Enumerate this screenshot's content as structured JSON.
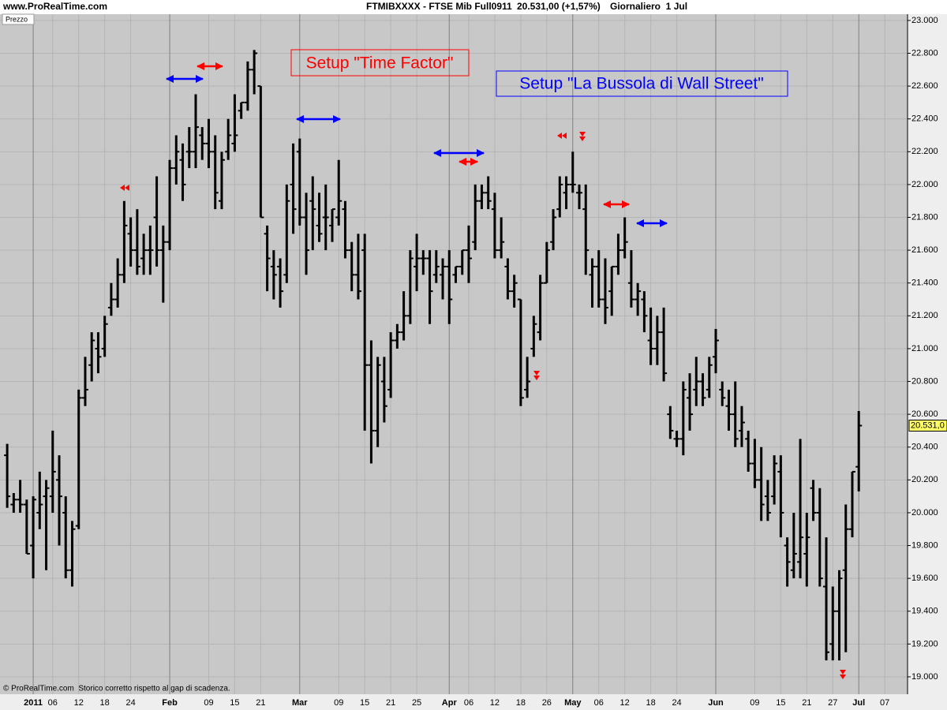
{
  "chart_data": {
    "type": "ohlc",
    "site": "www.ProRealTime.com",
    "title": "FTMIBXXXX - FTSE Mib Full0911",
    "quote": "20.531,00 (+1,57%)",
    "period": "Giornaliero  1 Jul",
    "panel_label": "Prezzo",
    "footer": "© ProRealTime.com  Storico corretto rispetto al gap di scadenza.",
    "annotations": [
      {
        "text": "Setup \"Time Factor\"",
        "color": "#ff0000"
      },
      {
        "text": "Setup \"La Bussola di Wall Street\"",
        "color": "#0000ff"
      }
    ],
    "color": "#000000",
    "grid": true,
    "categories": [
      null,
      null,
      null,
      null,
      "2011",
      null,
      null,
      "06",
      null,
      null,
      null,
      "12",
      null,
      null,
      null,
      "18",
      null,
      null,
      null,
      "24",
      null,
      null,
      null,
      null,
      null,
      "Feb",
      null,
      null,
      null,
      null,
      null,
      "09",
      null,
      null,
      null,
      "15",
      null,
      null,
      null,
      "21",
      null,
      null,
      null,
      null,
      null,
      "Mar",
      null,
      null,
      null,
      null,
      null,
      "09",
      null,
      null,
      null,
      "15",
      null,
      null,
      null,
      "21",
      null,
      null,
      null,
      "25",
      null,
      null,
      null,
      null,
      "Apr",
      null,
      null,
      "06",
      null,
      null,
      null,
      "12",
      null,
      null,
      null,
      "18",
      null,
      null,
      null,
      "26",
      null,
      null,
      null,
      "May",
      null,
      null,
      null,
      "06",
      null,
      null,
      null,
      "12",
      null,
      null,
      null,
      "18",
      null,
      null,
      null,
      "24",
      null,
      null,
      null,
      null,
      null,
      "Jun",
      null,
      null,
      null,
      null,
      null,
      "09",
      null,
      null,
      null,
      "15",
      null,
      null,
      null,
      "21",
      null,
      null,
      null,
      "27",
      null,
      null,
      null,
      "Jul",
      null,
      null,
      null,
      "07",
      null,
      null,
      null
    ],
    "open": [
      20350,
      20050,
      20080,
      20050,
      19800,
      20000,
      20100,
      20100,
      20200,
      20000,
      19650,
      19920,
      20700,
      20900,
      21000,
      21000,
      21250,
      21300,
      21450,
      21700,
      21600,
      21550,
      21600,
      21800,
      21600,
      21650,
      22100,
      22150,
      22200,
      22200,
      22300,
      22250,
      22200,
      21900,
      22200,
      22250,
      22450,
      22500,
      22700,
      22600,
      21700,
      21500,
      21500,
      21450,
      22000,
      22200,
      21800,
      21900,
      21750,
      21800,
      21750,
      21800,
      21850,
      21600,
      21450,
      21600,
      20900,
      20500,
      20800,
      20750,
      21050,
      21100,
      21200,
      21500,
      21550,
      21550,
      21450,
      21450,
      21500,
      21450,
      21500,
      21600,
      21650,
      21900,
      21950,
      21850,
      21600,
      21500,
      21350,
      21300,
      20750,
      21000,
      21100,
      21400,
      21650,
      21850,
      21950,
      22000,
      21950,
      21850,
      21450,
      21500,
      21300,
      21350,
      21500,
      21600,
      21400,
      21300,
      21300,
      21050,
      21000,
      21100,
      20600,
      20450,
      20450,
      20700,
      20750,
      20800,
      20750,
      20950,
      20750,
      20650,
      20600,
      20500,
      20450,
      20300,
      20200,
      20100,
      20100,
      20250,
      19800,
      19650,
      19700,
      19750,
      20150,
      20000,
      19550,
      19200,
      19400,
      19650,
      19900,
      20280,
      null,
      null,
      null,
      null,
      null,
      null,
      null
    ],
    "high": [
      20420,
      20120,
      20200,
      20080,
      20100,
      20250,
      20200,
      20500,
      20350,
      20100,
      19950,
      20750,
      20950,
      21100,
      21100,
      21200,
      21400,
      21550,
      21900,
      21800,
      21850,
      21700,
      21750,
      22050,
      21750,
      22150,
      22300,
      22250,
      22350,
      22550,
      22350,
      22400,
      22300,
      22200,
      22400,
      22550,
      22500,
      22750,
      22820,
      22600,
      21750,
      21600,
      21550,
      22000,
      22250,
      22280,
      21950,
      22050,
      21950,
      22000,
      21850,
      22150,
      21900,
      21650,
      21700,
      21700,
      21050,
      20950,
      20950,
      21100,
      21150,
      21350,
      21600,
      21700,
      21600,
      21600,
      21600,
      21550,
      21600,
      21500,
      21600,
      21750,
      22000,
      22000,
      22050,
      21950,
      21800,
      21550,
      21450,
      21300,
      20950,
      21200,
      21450,
      21650,
      21850,
      22050,
      22050,
      22200,
      22000,
      22000,
      21550,
      21600,
      21550,
      21500,
      21700,
      21800,
      21600,
      21400,
      21350,
      21250,
      21200,
      21250,
      20650,
      20500,
      20800,
      20850,
      20950,
      20850,
      20950,
      21120,
      20800,
      20750,
      20800,
      20650,
      20500,
      20450,
      20400,
      20200,
      20350,
      20350,
      19850,
      20000,
      20450,
      20000,
      20200,
      20150,
      19850,
      19550,
      19650,
      20050,
      20250,
      20620,
      null,
      null,
      null,
      null,
      null,
      null,
      null
    ],
    "low": [
      20030,
      20000,
      20000,
      19750,
      19600,
      19900,
      19650,
      20000,
      19800,
      19600,
      19550,
      19900,
      20650,
      20800,
      20850,
      20950,
      21200,
      21250,
      21400,
      21500,
      21450,
      21450,
      21450,
      21500,
      21280,
      21600,
      22000,
      21900,
      22100,
      22100,
      22150,
      22100,
      21850,
      21850,
      22150,
      22200,
      22400,
      22450,
      22550,
      21800,
      21350,
      21300,
      21250,
      21400,
      21700,
      21750,
      21450,
      21600,
      21650,
      21600,
      21650,
      21750,
      21550,
      21350,
      21300,
      20500,
      20300,
      20400,
      20550,
      20700,
      21000,
      21050,
      21150,
      21350,
      21450,
      21150,
      21400,
      21300,
      21150,
      21400,
      21450,
      21400,
      21600,
      21850,
      21850,
      21550,
      21550,
      21300,
      21250,
      20650,
      20700,
      20950,
      21050,
      21400,
      21600,
      21800,
      21850,
      21950,
      21850,
      21450,
      21250,
      21250,
      21150,
      21200,
      21450,
      21550,
      21250,
      21200,
      21100,
      20900,
      20900,
      20800,
      20450,
      20400,
      20350,
      20500,
      20650,
      20650,
      20700,
      20850,
      20650,
      20500,
      20400,
      20400,
      20250,
      20150,
      19950,
      19950,
      20050,
      19850,
      19550,
      19600,
      19600,
      19550,
      19950,
      19550,
      19100,
      19100,
      19100,
      19150,
      19850,
      20130,
      null,
      null,
      null,
      null,
      null,
      null,
      null
    ],
    "close": [
      20100,
      20080,
      20050,
      19750,
      20080,
      20050,
      20150,
      20250,
      20100,
      19650,
      19900,
      20700,
      20750,
      21050,
      20950,
      21150,
      21300,
      21450,
      21750,
      21600,
      21500,
      21600,
      21600,
      21600,
      21650,
      22100,
      22200,
      22000,
      22200,
      22350,
      22250,
      22200,
      21950,
      22150,
      22300,
      22300,
      22500,
      22700,
      22800,
      21800,
      21550,
      21450,
      21350,
      21900,
      21850,
      21800,
      21600,
      21850,
      21700,
      21800,
      21850,
      21900,
      21600,
      21450,
      21350,
      20900,
      20500,
      20900,
      20650,
      21050,
      21100,
      21200,
      21550,
      21550,
      21550,
      21350,
      21500,
      21500,
      21300,
      21500,
      21600,
      21550,
      21900,
      21950,
      21900,
      21600,
      21650,
      21350,
      21400,
      20700,
      20800,
      21150,
      21400,
      21600,
      21800,
      22000,
      22000,
      22000,
      21950,
      21600,
      21500,
      21300,
      21250,
      21500,
      21600,
      21650,
      21300,
      21350,
      21200,
      21000,
      21100,
      20850,
      20500,
      20450,
      20750,
      20600,
      20800,
      20700,
      20900,
      21050,
      20700,
      20600,
      20450,
      20550,
      20300,
      20200,
      20050,
      20000,
      20300,
      20000,
      19700,
      19750,
      19850,
      19850,
      20000,
      19600,
      19150,
      19400,
      19600,
      19900,
      20250,
      20531,
      null,
      null,
      null,
      null,
      null,
      null,
      null
    ],
    "last_price": {
      "value": 20531,
      "label": "20.531,0"
    },
    "ylim": [
      18894,
      23038
    ],
    "yticks": [
      {
        "value": 19000,
        "label": "19.000"
      },
      {
        "value": 19200,
        "label": "19.200"
      },
      {
        "value": 19400,
        "label": "19.400"
      },
      {
        "value": 19600,
        "label": "19.600"
      },
      {
        "value": 19800,
        "label": "19.800"
      },
      {
        "value": 20000,
        "label": "20.000"
      },
      {
        "value": 20200,
        "label": "20.200"
      },
      {
        "value": 20400,
        "label": "20.400"
      },
      {
        "value": 20600,
        "label": "20.600"
      },
      {
        "value": 20800,
        "label": "20.800"
      },
      {
        "value": 21000,
        "label": "21.000"
      },
      {
        "value": 21200,
        "label": "21.200"
      },
      {
        "value": 21400,
        "label": "21.400"
      },
      {
        "value": 21600,
        "label": "21.600"
      },
      {
        "value": 21800,
        "label": "21.800"
      },
      {
        "value": 22000,
        "label": "22.000"
      },
      {
        "value": 22200,
        "label": "22.200"
      },
      {
        "value": 22400,
        "label": "22.400"
      },
      {
        "value": 22600,
        "label": "22.600"
      },
      {
        "value": 22800,
        "label": "22.800"
      },
      {
        "value": 23000,
        "label": "23.000"
      }
    ]
  }
}
